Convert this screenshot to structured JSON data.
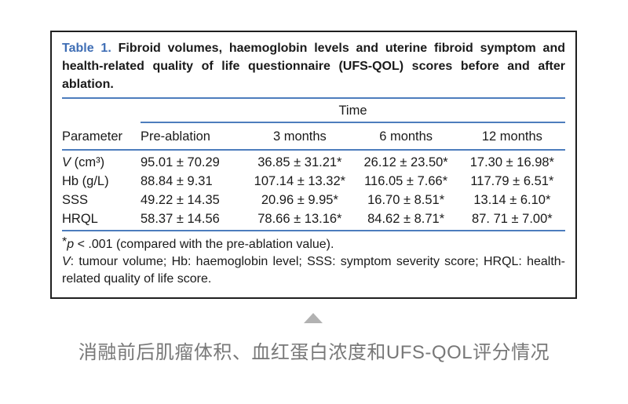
{
  "title": {
    "label": "Table 1.",
    "text": " Fibroid volumes, haemoglobin levels and uterine fibroid symptom and health-related quality of life questionnaire (UFS-QOL) scores before and after ablation."
  },
  "table": {
    "group_header": "Time",
    "columns": [
      "Parameter",
      "Pre-ablation",
      "3 months",
      "6 months",
      "12 months"
    ],
    "rows": [
      {
        "label_italic": "V",
        "label_rest": " (cm³)",
        "values": [
          "95.01 ± 70.29",
          "36.85 ± 31.21*",
          "26.12 ± 23.50*",
          "17.30 ± 16.98*"
        ]
      },
      {
        "label_italic": "",
        "label_rest": "Hb (g/L)",
        "values": [
          "88.84 ± 9.31",
          "107.14 ± 13.32*",
          "116.05 ± 7.66*",
          "117.79 ± 6.51*"
        ]
      },
      {
        "label_italic": "",
        "label_rest": "SSS",
        "values": [
          "49.22 ± 14.35",
          "20.96 ± 9.95*",
          "16.70 ± 8.51*",
          "13.14 ± 6.10*"
        ]
      },
      {
        "label_italic": "",
        "label_rest": "HRQL",
        "values": [
          "58.37 ± 14.56",
          "78.66 ± 13.16*",
          "84.62 ± 8.71*",
          "87. 71 ± 7.00*"
        ]
      }
    ]
  },
  "footnotes": {
    "sig_star": "*",
    "sig_p": "p",
    "sig_rest": " < .001 (compared with the pre-ablation value).",
    "abbrev_var": "V",
    "abbrev_rest": ": tumour volume; Hb: haemoglobin level; SSS: symptom severity score; HRQL: health-related quality of life score."
  },
  "caption": {
    "text": "消融前后肌瘤体积、血红蛋白浓度和UFS-QOL评分情况",
    "collapse_icon": "triangle-up"
  },
  "colors": {
    "accent_blue": "#3f6eb5",
    "rule_blue": "#4d7dbd",
    "border_black": "#1f1f1f",
    "text_black": "#1a1a1a",
    "caption_gray": "#787878",
    "triangle_gray": "#b2b2b2"
  }
}
